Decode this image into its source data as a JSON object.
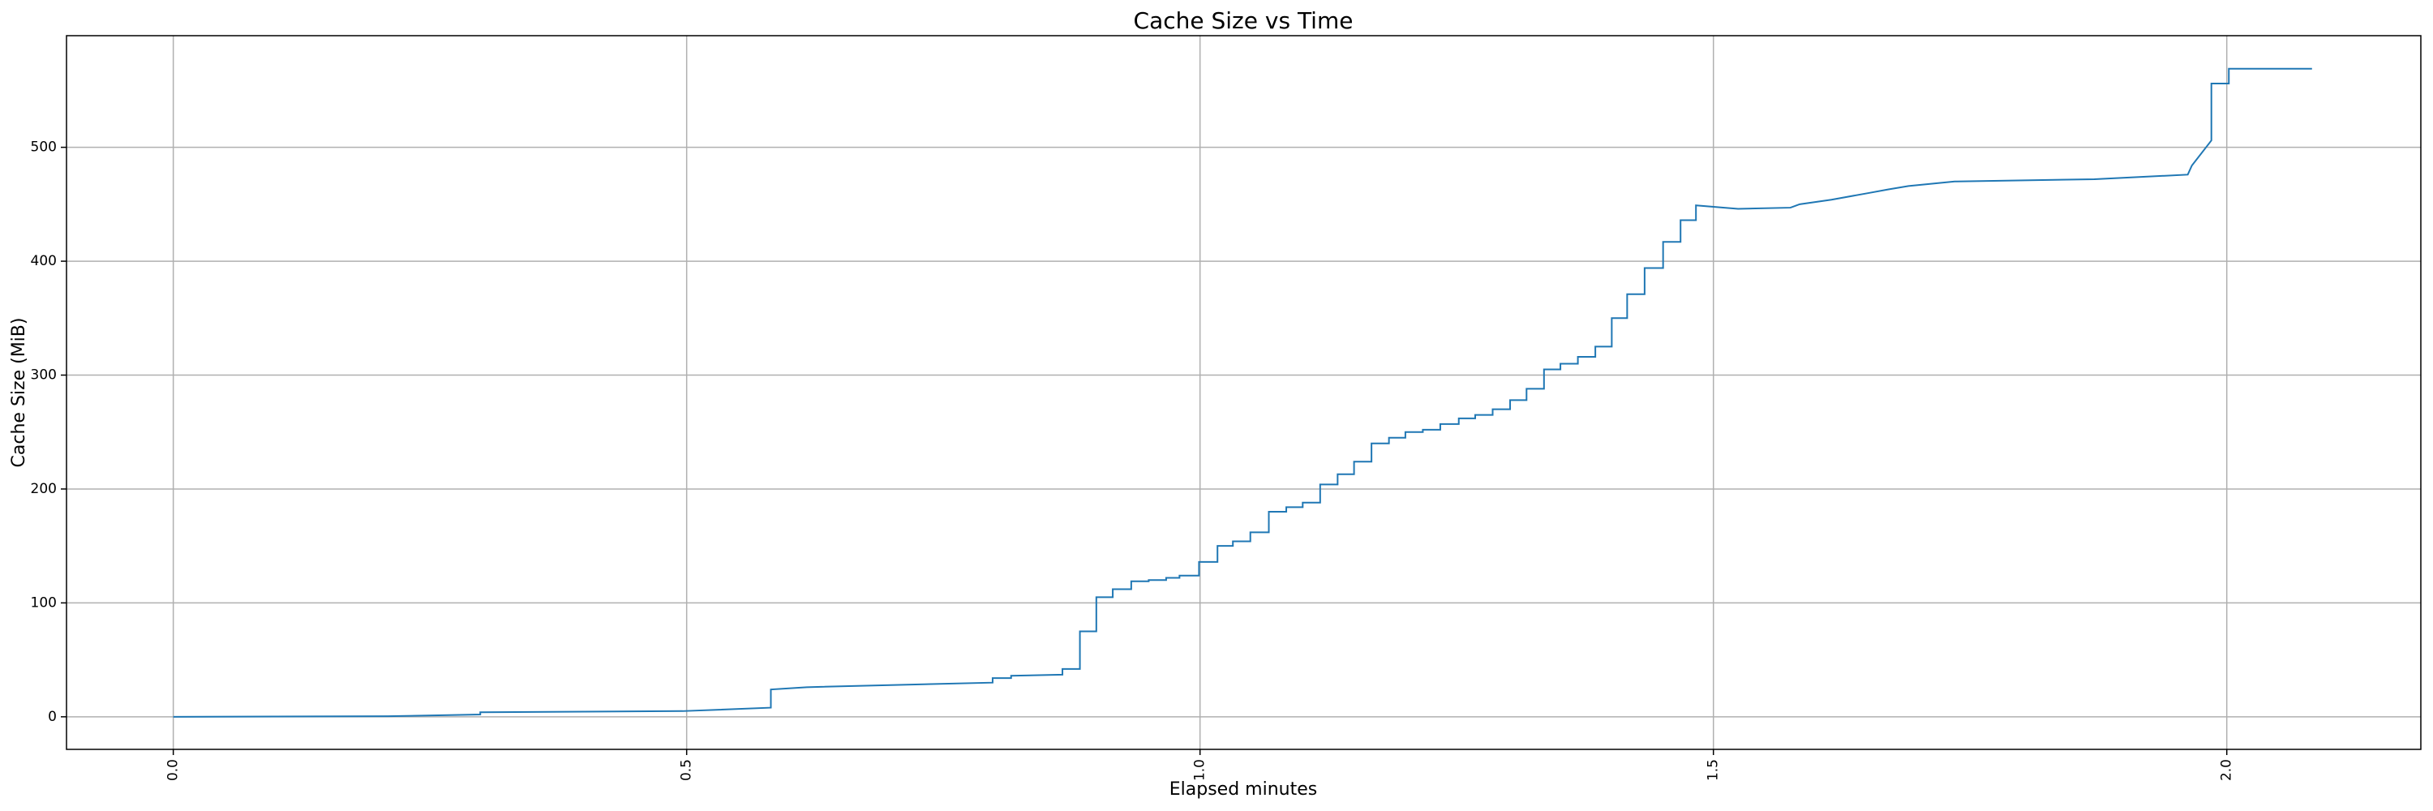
{
  "chart_data": {
    "type": "line",
    "title": "Cache Size vs Time",
    "xlabel": "Elapsed minutes",
    "ylabel": "Cache Size (MiB)",
    "series": [
      {
        "color": "#1f77b4",
        "x": [
          0,
          0.209,
          0.299,
          0.299,
          0.496,
          0.582,
          0.582,
          0.617,
          0.798,
          0.798,
          0.816,
          0.816,
          0.866,
          0.866,
          0.883,
          0.883,
          0.899,
          0.899,
          0.915,
          0.915,
          0.933,
          0.933,
          0.95,
          0.95,
          0.967,
          0.967,
          0.98,
          0.98,
          0.999,
          0.999,
          1.017,
          1.017,
          1.032,
          1.032,
          1.049,
          1.049,
          1.067,
          1.067,
          1.084,
          1.084,
          1.1,
          1.1,
          1.117,
          1.117,
          1.134,
          1.134,
          1.15,
          1.15,
          1.167,
          1.167,
          1.184,
          1.184,
          1.2,
          1.2,
          1.217,
          1.217,
          1.234,
          1.234,
          1.252,
          1.252,
          1.268,
          1.268,
          1.285,
          1.285,
          1.302,
          1.302,
          1.318,
          1.318,
          1.335,
          1.335,
          1.351,
          1.351,
          1.368,
          1.368,
          1.385,
          1.385,
          1.401,
          1.401,
          1.416,
          1.416,
          1.433,
          1.433,
          1.451,
          1.451,
          1.468,
          1.468,
          1.483,
          1.483,
          1.524,
          1.575,
          1.584,
          1.615,
          1.652,
          1.67,
          1.69,
          1.735,
          1.871,
          1.962,
          1.966,
          1.985,
          1.985,
          2.002,
          2.002,
          2.083
        ],
        "values": [
          0,
          0.5,
          2,
          4,
          5,
          8,
          24,
          26,
          30,
          34,
          34,
          36,
          37,
          42,
          42,
          75,
          75,
          105,
          105,
          112,
          112,
          119,
          119,
          120,
          120,
          122,
          122,
          124,
          124,
          136,
          136,
          150,
          150,
          154,
          154,
          162,
          162,
          180,
          180,
          184,
          184,
          188,
          188,
          204,
          204,
          213,
          213,
          224,
          224,
          240,
          240,
          245,
          245,
          250,
          250,
          252,
          252,
          257,
          257,
          262,
          262,
          265,
          265,
          270,
          270,
          278,
          278,
          288,
          288,
          305,
          305,
          310,
          310,
          316,
          316,
          325,
          325,
          350,
          350,
          371,
          371,
          394,
          394,
          417,
          417,
          436,
          436,
          449,
          446,
          447,
          450,
          454,
          460,
          463,
          466,
          470,
          472,
          476,
          484,
          506,
          556,
          556,
          569,
          569
        ]
      }
    ],
    "xlim": [
      -0.104,
      2.189
    ],
    "ylim": [
      -28.6,
      598
    ],
    "xticks": [
      {
        "value": 0,
        "label": "0.0"
      },
      {
        "value": 0.5,
        "label": "0.5"
      },
      {
        "value": 1,
        "label": "1.0"
      },
      {
        "value": 1.5,
        "label": "1.5"
      },
      {
        "value": 2,
        "label": "2.0"
      }
    ],
    "yticks": [
      0,
      100,
      200,
      300,
      400,
      500
    ],
    "grid": true
  }
}
